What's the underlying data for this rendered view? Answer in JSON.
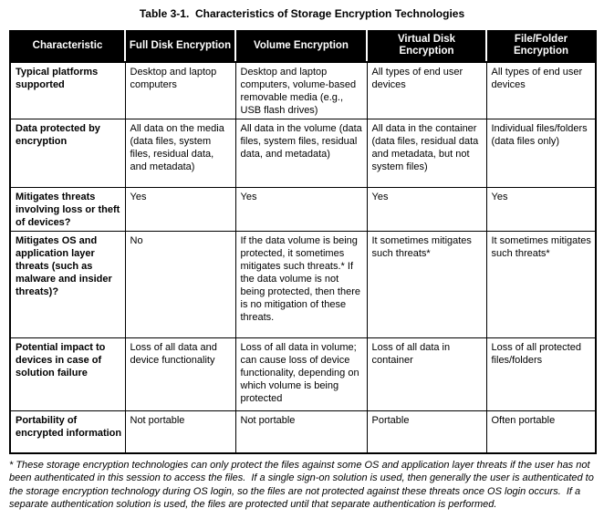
{
  "title": "Table 3-1.  Characteristics of Storage Encryption Technologies",
  "table": {
    "columns": [
      "Characteristic",
      "Full Disk Encryption",
      "Volume Encryption",
      "Virtual Disk Encryption",
      "File/Folder Encryption"
    ],
    "rows": [
      {
        "cells": [
          "Typical platforms supported",
          "Desktop and laptop computers",
          "Desktop and laptop computers, volume-based removable media (e.g., USB flash drives)",
          "All types of end user devices",
          "All types of end user devices"
        ]
      },
      {
        "cells": [
          "Data protected by encryption",
          "All data on the media (data files, system files, residual data, and metadata)",
          "All data in the volume (data files, system files, residual data, and metadata)",
          "All data in the container (data files, residual data and metadata, but not system files)",
          "Individual files/folders (data files only)"
        ]
      },
      {
        "cells": [
          "Mitigates threats involving loss or theft of devices?",
          "Yes",
          "Yes",
          "Yes",
          "Yes"
        ]
      },
      {
        "cells": [
          "Mitigates OS and application layer threats (such as malware and insider threats)?",
          "No",
          "If the data volume is being protected, it sometimes mitigates such threats.* If the data volume is not being protected, then there is no mitigation of these threats.",
          "It sometimes mitigates such threats*",
          "It sometimes mitigates such threats*"
        ]
      },
      {
        "cells": [
          "Potential impact to devices in case of solution failure",
          "Loss of all data and device functionality",
          "Loss of all data in volume; can cause loss of device functionality, depending on which volume is being protected",
          "Loss of all data in container",
          "Loss of all protected files/folders"
        ]
      },
      {
        "cells": [
          "Portability of encrypted information",
          "Not portable",
          "Not portable",
          "Portable",
          "Often portable"
        ]
      }
    ]
  },
  "footnote": "* These storage encryption technologies can only protect the files against some OS and application layer threats if the user has not been authenticated in this session to access the files.  If a single sign-on solution is used, then generally the user is authenticated to the storage encryption technology during OS login, so the files are not protected against these threats once OS login occurs.  If a separate authentication solution is used, the files are protected until that separate authentication is performed.",
  "colors": {
    "header_bg": "#000000",
    "header_text": "#ffffff",
    "body_bg": "#ffffff",
    "body_text": "#000000",
    "border": "#000000"
  }
}
